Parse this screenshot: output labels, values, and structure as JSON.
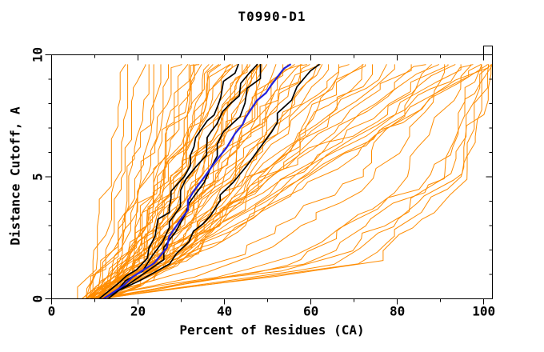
{
  "title": "T0990-D1",
  "axes": {
    "xlabel": "Percent of Residues (CA)",
    "ylabel": "Distance Cutoff, A",
    "xlim": [
      0,
      102
    ],
    "ylim": [
      0,
      10
    ],
    "x_major_ticks": [
      0,
      20,
      40,
      60,
      80,
      100
    ],
    "x_minor_step": 10,
    "y_major_ticks": [
      0,
      5,
      10
    ],
    "y_minor_step": 1,
    "frame": "box-with-mirrored-inward-ticks",
    "corner_notch": true
  },
  "colors": {
    "background": "#ffffff",
    "axis": "#000000",
    "model_orange": "#ff8c00",
    "model_black": "#000000",
    "model_blue": "#2222dd"
  },
  "chart_data": {
    "type": "line",
    "title": "T0990-D1",
    "xlabel": "Percent of Residues (CA)",
    "ylabel": "Distance Cutoff, A",
    "xlim": [
      0,
      102
    ],
    "ylim": [
      0,
      10
    ],
    "grid": false,
    "legend": "none",
    "description": "GDT plot: each curve is percent of CA residues (x) under a distance cutoff in Angstroms (y). Curves encoded as x-percent anchors at cutoffs 0, 1.5, 5 and 9.6 A plus a jitter seed.",
    "anchor_cutoffs": [
      0,
      1.5,
      5,
      9.6
    ],
    "top_cutoff": 9.6,
    "series_groups": [
      {
        "name": "orange-models",
        "color": "#ff8c00",
        "width": 1,
        "jitter": 4.5,
        "curves": [
          [
            6,
            9,
            12,
            16,
            101
          ],
          [
            7,
            10,
            14,
            17,
            102
          ],
          [
            8,
            11,
            15,
            20,
            103
          ],
          [
            9,
            13,
            17,
            22,
            104
          ],
          [
            10,
            14,
            19,
            24,
            105
          ],
          [
            8,
            13,
            19,
            25,
            106
          ],
          [
            10,
            15,
            21,
            27,
            107
          ],
          [
            7,
            13,
            20,
            28,
            108
          ],
          [
            11,
            16,
            23,
            30,
            109
          ],
          [
            8,
            14,
            22,
            31,
            110
          ],
          [
            12,
            18,
            24,
            32,
            111
          ],
          [
            9,
            16,
            24,
            33,
            112
          ],
          [
            11,
            17,
            25,
            34,
            113
          ],
          [
            8,
            16,
            25,
            35,
            114
          ],
          [
            12,
            19,
            27,
            36,
            115
          ],
          [
            9,
            17,
            26,
            37,
            116
          ],
          [
            13,
            20,
            28,
            38,
            117
          ],
          [
            10,
            18,
            28,
            39,
            118
          ],
          [
            8,
            17,
            28,
            40,
            119
          ],
          [
            12,
            20,
            30,
            41,
            120
          ],
          [
            9,
            18,
            29,
            42,
            121
          ],
          [
            13,
            21,
            32,
            43,
            122
          ],
          [
            10,
            20,
            31,
            44,
            123
          ],
          [
            8,
            18,
            31,
            45,
            124
          ],
          [
            12,
            22,
            33,
            46,
            125
          ],
          [
            9,
            20,
            33,
            47,
            126
          ],
          [
            13,
            23,
            35,
            48,
            127
          ],
          [
            10,
            21,
            35,
            50,
            128
          ],
          [
            8,
            20,
            35,
            51,
            129
          ],
          [
            12,
            23,
            37,
            52,
            130
          ],
          [
            9,
            21,
            36,
            53,
            131
          ],
          [
            13,
            25,
            39,
            55,
            132
          ],
          [
            10,
            23,
            39,
            56,
            133
          ],
          [
            8,
            22,
            38,
            57,
            134
          ],
          [
            12,
            25,
            41,
            58,
            135
          ],
          [
            9,
            23,
            41,
            60,
            136
          ],
          [
            13,
            26,
            43,
            61,
            137
          ],
          [
            10,
            25,
            43,
            63,
            138
          ],
          [
            8,
            24,
            43,
            64,
            139
          ],
          [
            12,
            27,
            45,
            66,
            140
          ],
          [
            9,
            25,
            46,
            68,
            141
          ],
          [
            13,
            29,
            48,
            70,
            142
          ],
          [
            10,
            27,
            48,
            71,
            143
          ],
          [
            8,
            26,
            48,
            73,
            144
          ],
          [
            12,
            30,
            51,
            75,
            145
          ],
          [
            11,
            19,
            27,
            36.5,
            146
          ],
          [
            10,
            19,
            30,
            43.5,
            147
          ],
          [
            11,
            21,
            33,
            47.5,
            148
          ],
          [
            9,
            19,
            32,
            49.5,
            149
          ],
          [
            11,
            23,
            37,
            54.5,
            150
          ],
          [
            10,
            24,
            40,
            58.5,
            151
          ],
          [
            9,
            23,
            47,
            78,
            152
          ],
          [
            13,
            26,
            50,
            80,
            153
          ],
          [
            10,
            24,
            50,
            83,
            154
          ],
          [
            12,
            27,
            52,
            85,
            155
          ],
          [
            9,
            25,
            52,
            88,
            156
          ],
          [
            13,
            28,
            55,
            90,
            157
          ],
          [
            10,
            26,
            55,
            92,
            158
          ],
          [
            12,
            29,
            58,
            95,
            159
          ],
          [
            9,
            27,
            57,
            97,
            160
          ],
          [
            13,
            30,
            60,
            99,
            161
          ],
          [
            10,
            28,
            60,
            100,
            162
          ],
          [
            12,
            30,
            62,
            101,
            163
          ],
          [
            9,
            55,
            88,
            99,
            164
          ],
          [
            10,
            60,
            90,
            100,
            165
          ],
          [
            10,
            64,
            92,
            100,
            166
          ],
          [
            11,
            68,
            93,
            101,
            167
          ],
          [
            11,
            72,
            94,
            101,
            168
          ],
          [
            12,
            75,
            95,
            101,
            169
          ],
          [
            12,
            58,
            82,
            96,
            170
          ],
          [
            11,
            40,
            70,
            88,
            171
          ],
          [
            12,
            45,
            75,
            92,
            172
          ]
        ]
      },
      {
        "name": "black-models",
        "color": "#000000",
        "width": 1.7,
        "jitter": 2.2,
        "curves": [
          [
            11,
            21,
            30,
            42.5,
            201
          ],
          [
            12,
            23,
            32,
            46.5,
            202
          ],
          [
            12,
            25,
            35,
            49,
            203
          ],
          [
            13,
            27,
            43,
            61,
            204
          ]
        ]
      },
      {
        "name": "blue-model",
        "color": "#2222dd",
        "width": 2.2,
        "jitter": 1.8,
        "curves": [
          [
            12,
            24,
            35,
            54.5,
            301
          ]
        ]
      }
    ]
  }
}
